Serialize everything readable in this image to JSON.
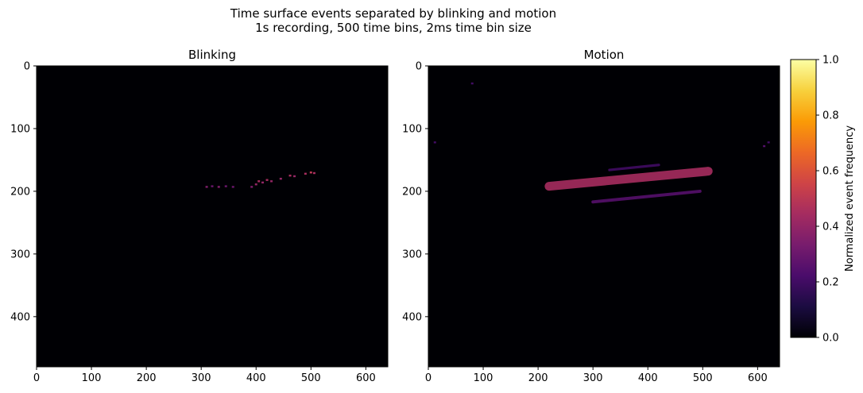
{
  "figure": {
    "title_line1": "Time surface events separated by blinking and motion",
    "title_line2": "1s recording, 500 time bins, 2ms time bin size"
  },
  "colors": {
    "background": "#000004",
    "colormap": [
      "#000004",
      "#1b0c41",
      "#4a0c6b",
      "#781c6d",
      "#a52c60",
      "#cf4446",
      "#ed6925",
      "#fb9b06",
      "#f7d13d",
      "#fcffa4"
    ]
  },
  "chart_data": [
    {
      "type": "heatmap",
      "title": "Blinking",
      "xlim": [
        0,
        640
      ],
      "ylim": [
        480,
        0
      ],
      "x_ticks": [
        0,
        100,
        200,
        300,
        400,
        500,
        600
      ],
      "y_ticks": [
        0,
        100,
        200,
        300,
        400
      ],
      "note_values": "normalized 0-1, sparse short streak near y 170-195, x 305-510",
      "points": [
        {
          "x": 310,
          "y": 193,
          "v": 0.35
        },
        {
          "x": 320,
          "y": 192,
          "v": 0.3
        },
        {
          "x": 332,
          "y": 193,
          "v": 0.35
        },
        {
          "x": 345,
          "y": 192,
          "v": 0.3
        },
        {
          "x": 358,
          "y": 193,
          "v": 0.3
        },
        {
          "x": 392,
          "y": 193,
          "v": 0.35
        },
        {
          "x": 400,
          "y": 189,
          "v": 0.4
        },
        {
          "x": 405,
          "y": 184,
          "v": 0.45
        },
        {
          "x": 412,
          "y": 186,
          "v": 0.4
        },
        {
          "x": 420,
          "y": 182,
          "v": 0.45
        },
        {
          "x": 428,
          "y": 184,
          "v": 0.4
        },
        {
          "x": 445,
          "y": 180,
          "v": 0.4
        },
        {
          "x": 462,
          "y": 175,
          "v": 0.45
        },
        {
          "x": 470,
          "y": 176,
          "v": 0.4
        },
        {
          "x": 490,
          "y": 172,
          "v": 0.45
        },
        {
          "x": 500,
          "y": 170,
          "v": 0.5
        },
        {
          "x": 506,
          "y": 171,
          "v": 0.45
        }
      ]
    },
    {
      "type": "heatmap",
      "title": "Motion",
      "xlim": [
        0,
        640
      ],
      "ylim": [
        480,
        0
      ],
      "x_ticks": [
        0,
        100,
        200,
        300,
        400,
        500,
        600
      ],
      "y_ticks": [
        0,
        100,
        200,
        300,
        400
      ],
      "note_values": "main streak from (220,190) to (510,168), faint streaks above and below",
      "streaks": [
        {
          "x0": 220,
          "y0": 192,
          "x1": 510,
          "y1": 168,
          "v": 0.45,
          "w": 14
        },
        {
          "x0": 300,
          "y0": 217,
          "x1": 495,
          "y1": 200,
          "v": 0.25,
          "w": 5
        },
        {
          "x0": 330,
          "y0": 166,
          "x1": 420,
          "y1": 158,
          "v": 0.2,
          "w": 4
        }
      ],
      "points": [
        {
          "x": 80,
          "y": 28,
          "v": 0.2
        },
        {
          "x": 12,
          "y": 122,
          "v": 0.2
        },
        {
          "x": 612,
          "y": 128,
          "v": 0.25
        },
        {
          "x": 620,
          "y": 122,
          "v": 0.2
        }
      ]
    }
  ],
  "colorbar": {
    "label": "Normalized event frequency",
    "range": [
      0,
      1
    ],
    "ticks": [
      0.0,
      0.2,
      0.4,
      0.6,
      0.8,
      1.0
    ],
    "tick_labels": [
      "0.0",
      "0.2",
      "0.4",
      "0.6",
      "0.8",
      "1.0"
    ]
  }
}
